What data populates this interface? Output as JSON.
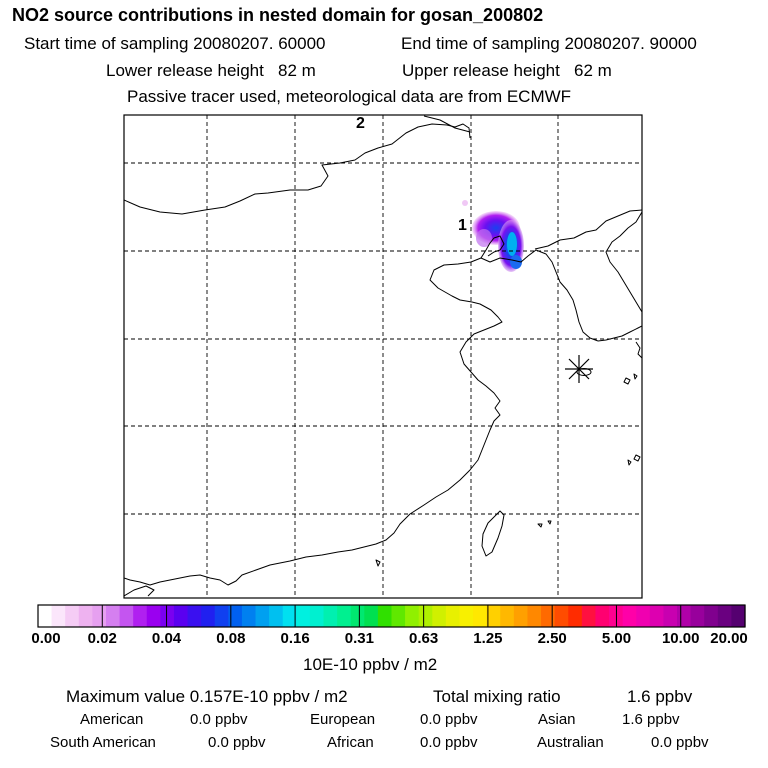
{
  "header": {
    "title": "NO2 source contributions in nested domain for gosan_200802",
    "start_time": "Start time of sampling 20080207. 60000",
    "end_time": "End time of sampling 20080207. 90000",
    "lower_release": "Lower release height   82 m",
    "upper_release": "Upper release height   62 m",
    "tracer_note": "Passive tracer used, meteorological data are from ECMWF"
  },
  "map": {
    "label_1": "1",
    "label_2": "2",
    "receptor_marker": "asterisk (Gosan station)"
  },
  "colorbar": {
    "labels": [
      "0.00",
      "0.02",
      "0.04",
      "0.08",
      "0.16",
      "0.31",
      "0.63",
      "1.25",
      "2.50",
      "5.00",
      "10.00",
      "20.00"
    ],
    "colors": [
      "#ffffff",
      "#fbe6fb",
      "#f5ccf5",
      "#eeb2f0",
      "#e6a0f0",
      "#d57ff0",
      "#c455f0",
      "#b020f0",
      "#9a00f0",
      "#7a00f0",
      "#5a00f0",
      "#3a10f0",
      "#2020f0",
      "#1040f0",
      "#0060f0",
      "#0080f0",
      "#00a0f0",
      "#00c0f0",
      "#00e0f0",
      "#00f0e0",
      "#00f0d0",
      "#00f0b0",
      "#00f090",
      "#00e870",
      "#00e050",
      "#30e000",
      "#60e800",
      "#90f000",
      "#b0f000",
      "#d0f000",
      "#e8f000",
      "#f8f000",
      "#ffe800",
      "#ffd000",
      "#ffb800",
      "#ffa000",
      "#ff8800",
      "#ff6a00",
      "#ff4c00",
      "#ff2c00",
      "#ff1040",
      "#ff0070",
      "#ff0090",
      "#ff00a8",
      "#f000b0",
      "#dd00b0",
      "#c800b0",
      "#b000a8",
      "#98009c",
      "#80008e",
      "#6a0080",
      "#550070"
    ],
    "unit": "10E-10 ppbv / m2"
  },
  "stats": {
    "max_label": "Maximum value  0.157E-10 ppbv / m2",
    "total_label": "Total mixing ratio",
    "total_value": "1.6 ppbv",
    "american_label": "American",
    "american_value": "0.0 ppbv",
    "european_label": "European",
    "european_value": "0.0 ppbv",
    "asian_label": "Asian",
    "asian_value": "1.6 ppbv",
    "south_american_label": "South American",
    "south_american_value": "0.0 ppbv",
    "african_label": "African",
    "african_value": "0.0 ppbv",
    "australian_label": "Australian",
    "australian_value": "0.0 ppbv"
  }
}
